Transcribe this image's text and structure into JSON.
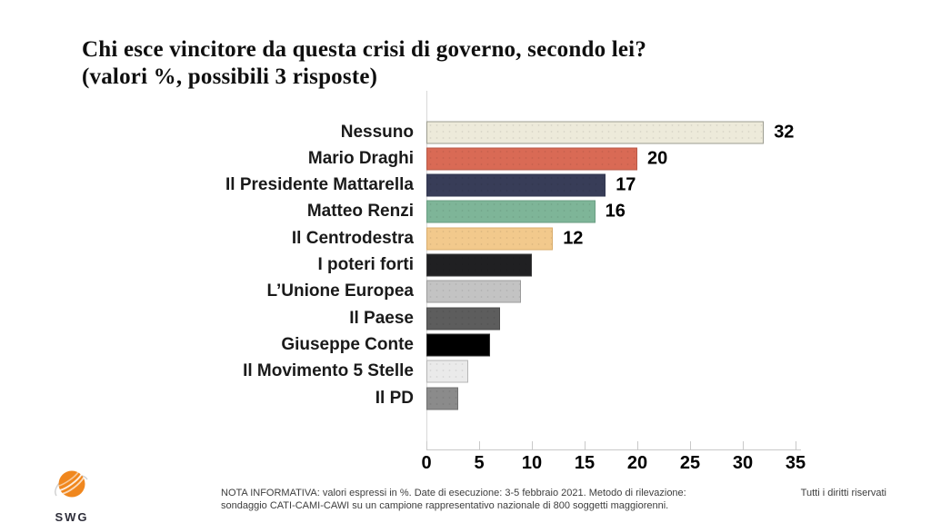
{
  "title": {
    "line1": "Chi esce vincitore da questa crisi di governo, secondo lei?",
    "line2": "(valori %, possibili 3 risposte)"
  },
  "chart_data": {
    "type": "bar",
    "orientation": "horizontal",
    "title": "Chi esce vincitore da questa crisi di governo, secondo lei?",
    "subtitle": "(valori %, possibili 3 risposte)",
    "unit": "%",
    "categories": [
      "Nessuno",
      "Mario Draghi",
      "Il Presidente Mattarella",
      "Matteo Renzi",
      "Il Centrodestra",
      "I poteri forti",
      "L’Unione Europea",
      "Il Paese",
      "Giuseppe Conte",
      "Il Movimento 5 Stelle",
      "Il PD"
    ],
    "values": [
      32,
      20,
      17,
      16,
      12,
      10,
      9,
      7,
      6,
      4,
      3
    ],
    "value_labels_shown": [
      true,
      true,
      true,
      true,
      true,
      false,
      false,
      false,
      false,
      false,
      false
    ],
    "bar_colors": [
      "#EDEADA",
      "#D96A55",
      "#383D58",
      "#7EB598",
      "#F2C98C",
      "#202022",
      "#C3C3C3",
      "#5D5D5D",
      "#000000",
      "#EAEAEA",
      "#8B8B8B"
    ],
    "bar_border_colors": [
      "#9C9C90",
      "#B75948",
      "#32374F",
      "#699D82",
      "#D9AD6D",
      "#3A3A3A",
      "#9B9B9B",
      "#4C4C4C",
      "#2E2E2E",
      "#B5B5B5",
      "#707070"
    ],
    "x_ticks": [
      0,
      5,
      10,
      15,
      20,
      25,
      30,
      35
    ],
    "xlim": [
      0,
      35
    ],
    "grid": false,
    "legend": "none"
  },
  "footer": {
    "logo_text": "SWG",
    "note_line1": "NOTA INFORMATIVA: valori espressi in %. Date di esecuzione: 3-5 febbraio 2021. Metodo di rilevazione:",
    "note_line2": "sondaggio CATI-CAMI-CAWI su un campione rappresentativo nazionale di 800 soggetti maggiorenni.",
    "rights": "Tutti i diritti riservati"
  },
  "colors": {
    "logo_orange": "#F0871E",
    "axis_line": "#c9c9c9",
    "text_dark": "#0f0f0f"
  }
}
